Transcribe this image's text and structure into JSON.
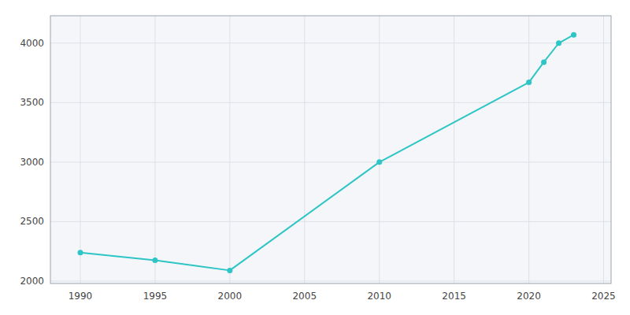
{
  "chart_data": {
    "type": "line",
    "x": [
      1990,
      1995,
      2000,
      2010,
      2020,
      2021,
      2022,
      2023
    ],
    "values": [
      2240,
      2175,
      2090,
      3000,
      3670,
      3840,
      4000,
      4070
    ],
    "color": "#2DC5C5",
    "marker": "circle",
    "xlim": [
      1988,
      2025.5
    ],
    "ylim": [
      1980,
      4230
    ],
    "xticks": [
      1990,
      1995,
      2000,
      2005,
      2010,
      2015,
      2020,
      2025
    ],
    "yticks": [
      2000,
      2500,
      3000,
      3500,
      4000
    ],
    "grid": true
  }
}
